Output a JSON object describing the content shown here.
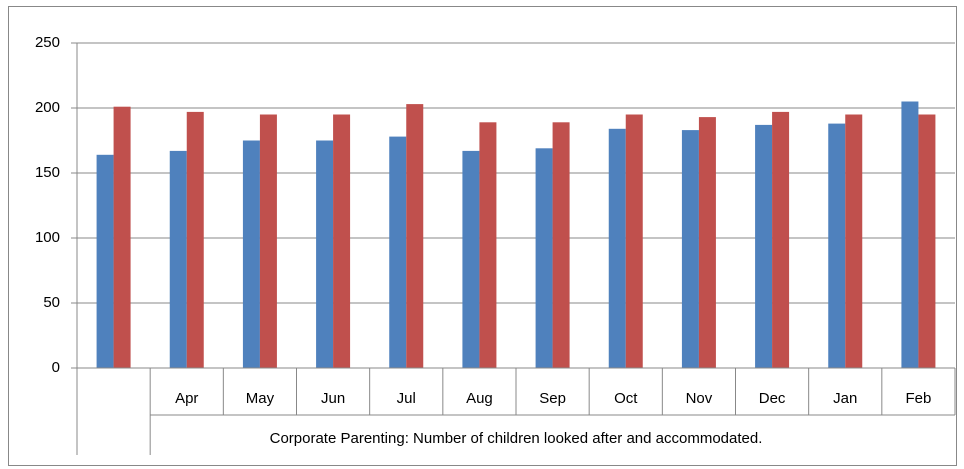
{
  "chart_data": {
    "type": "bar",
    "categories": [
      null,
      "Apr",
      "May",
      "Jun",
      "Jul",
      "Aug",
      "Sep",
      "Oct",
      "Nov",
      "Dec",
      "Jan",
      "Feb"
    ],
    "series": [
      {
        "color": "#4f81bd",
        "values": [
          164,
          167,
          175,
          175,
          178,
          167,
          169,
          184,
          183,
          187,
          188,
          205
        ]
      },
      {
        "color": "#c0504d",
        "values": [
          201,
          197,
          195,
          195,
          203,
          189,
          189,
          195,
          193,
          197,
          195,
          195
        ]
      }
    ],
    "xlabel": "Corporate Parenting: Number of children looked after and accommodated.",
    "ylim": [
      0,
      250
    ],
    "yticks": [
      0,
      50,
      100,
      150,
      200,
      250
    ],
    "grid": true
  }
}
